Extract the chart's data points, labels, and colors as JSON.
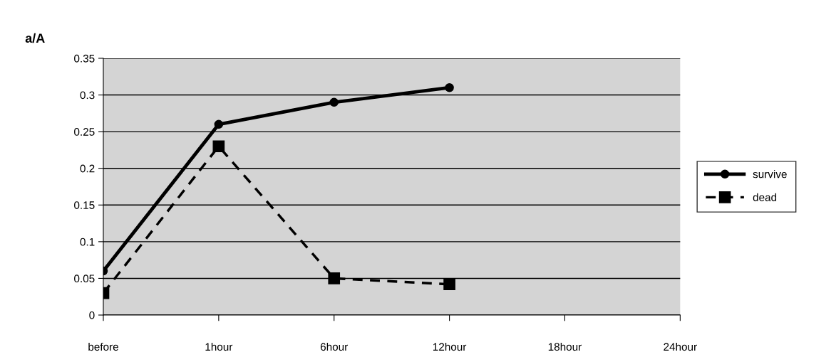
{
  "chart_data": {
    "type": "line",
    "ylabel": "a/A",
    "categories": [
      "before",
      "1hour",
      "6hour",
      "12hour",
      "18hour",
      "24hour"
    ],
    "series": [
      {
        "name": "survive",
        "color": "#000000",
        "marker": "circle",
        "line_style": "solid",
        "values": [
          0.06,
          0.26,
          0.29,
          0.31,
          null,
          null
        ]
      },
      {
        "name": "dead",
        "color": "#000000",
        "marker": "square",
        "line_style": "dashed",
        "values": [
          0.03,
          0.23,
          0.05,
          0.042,
          null,
          null
        ]
      }
    ],
    "ylim": [
      0,
      0.35
    ],
    "yticks": [
      0,
      0.05,
      0.1,
      0.15,
      0.2,
      0.25,
      0.3,
      0.35
    ],
    "grid": "y",
    "legend": "right"
  }
}
